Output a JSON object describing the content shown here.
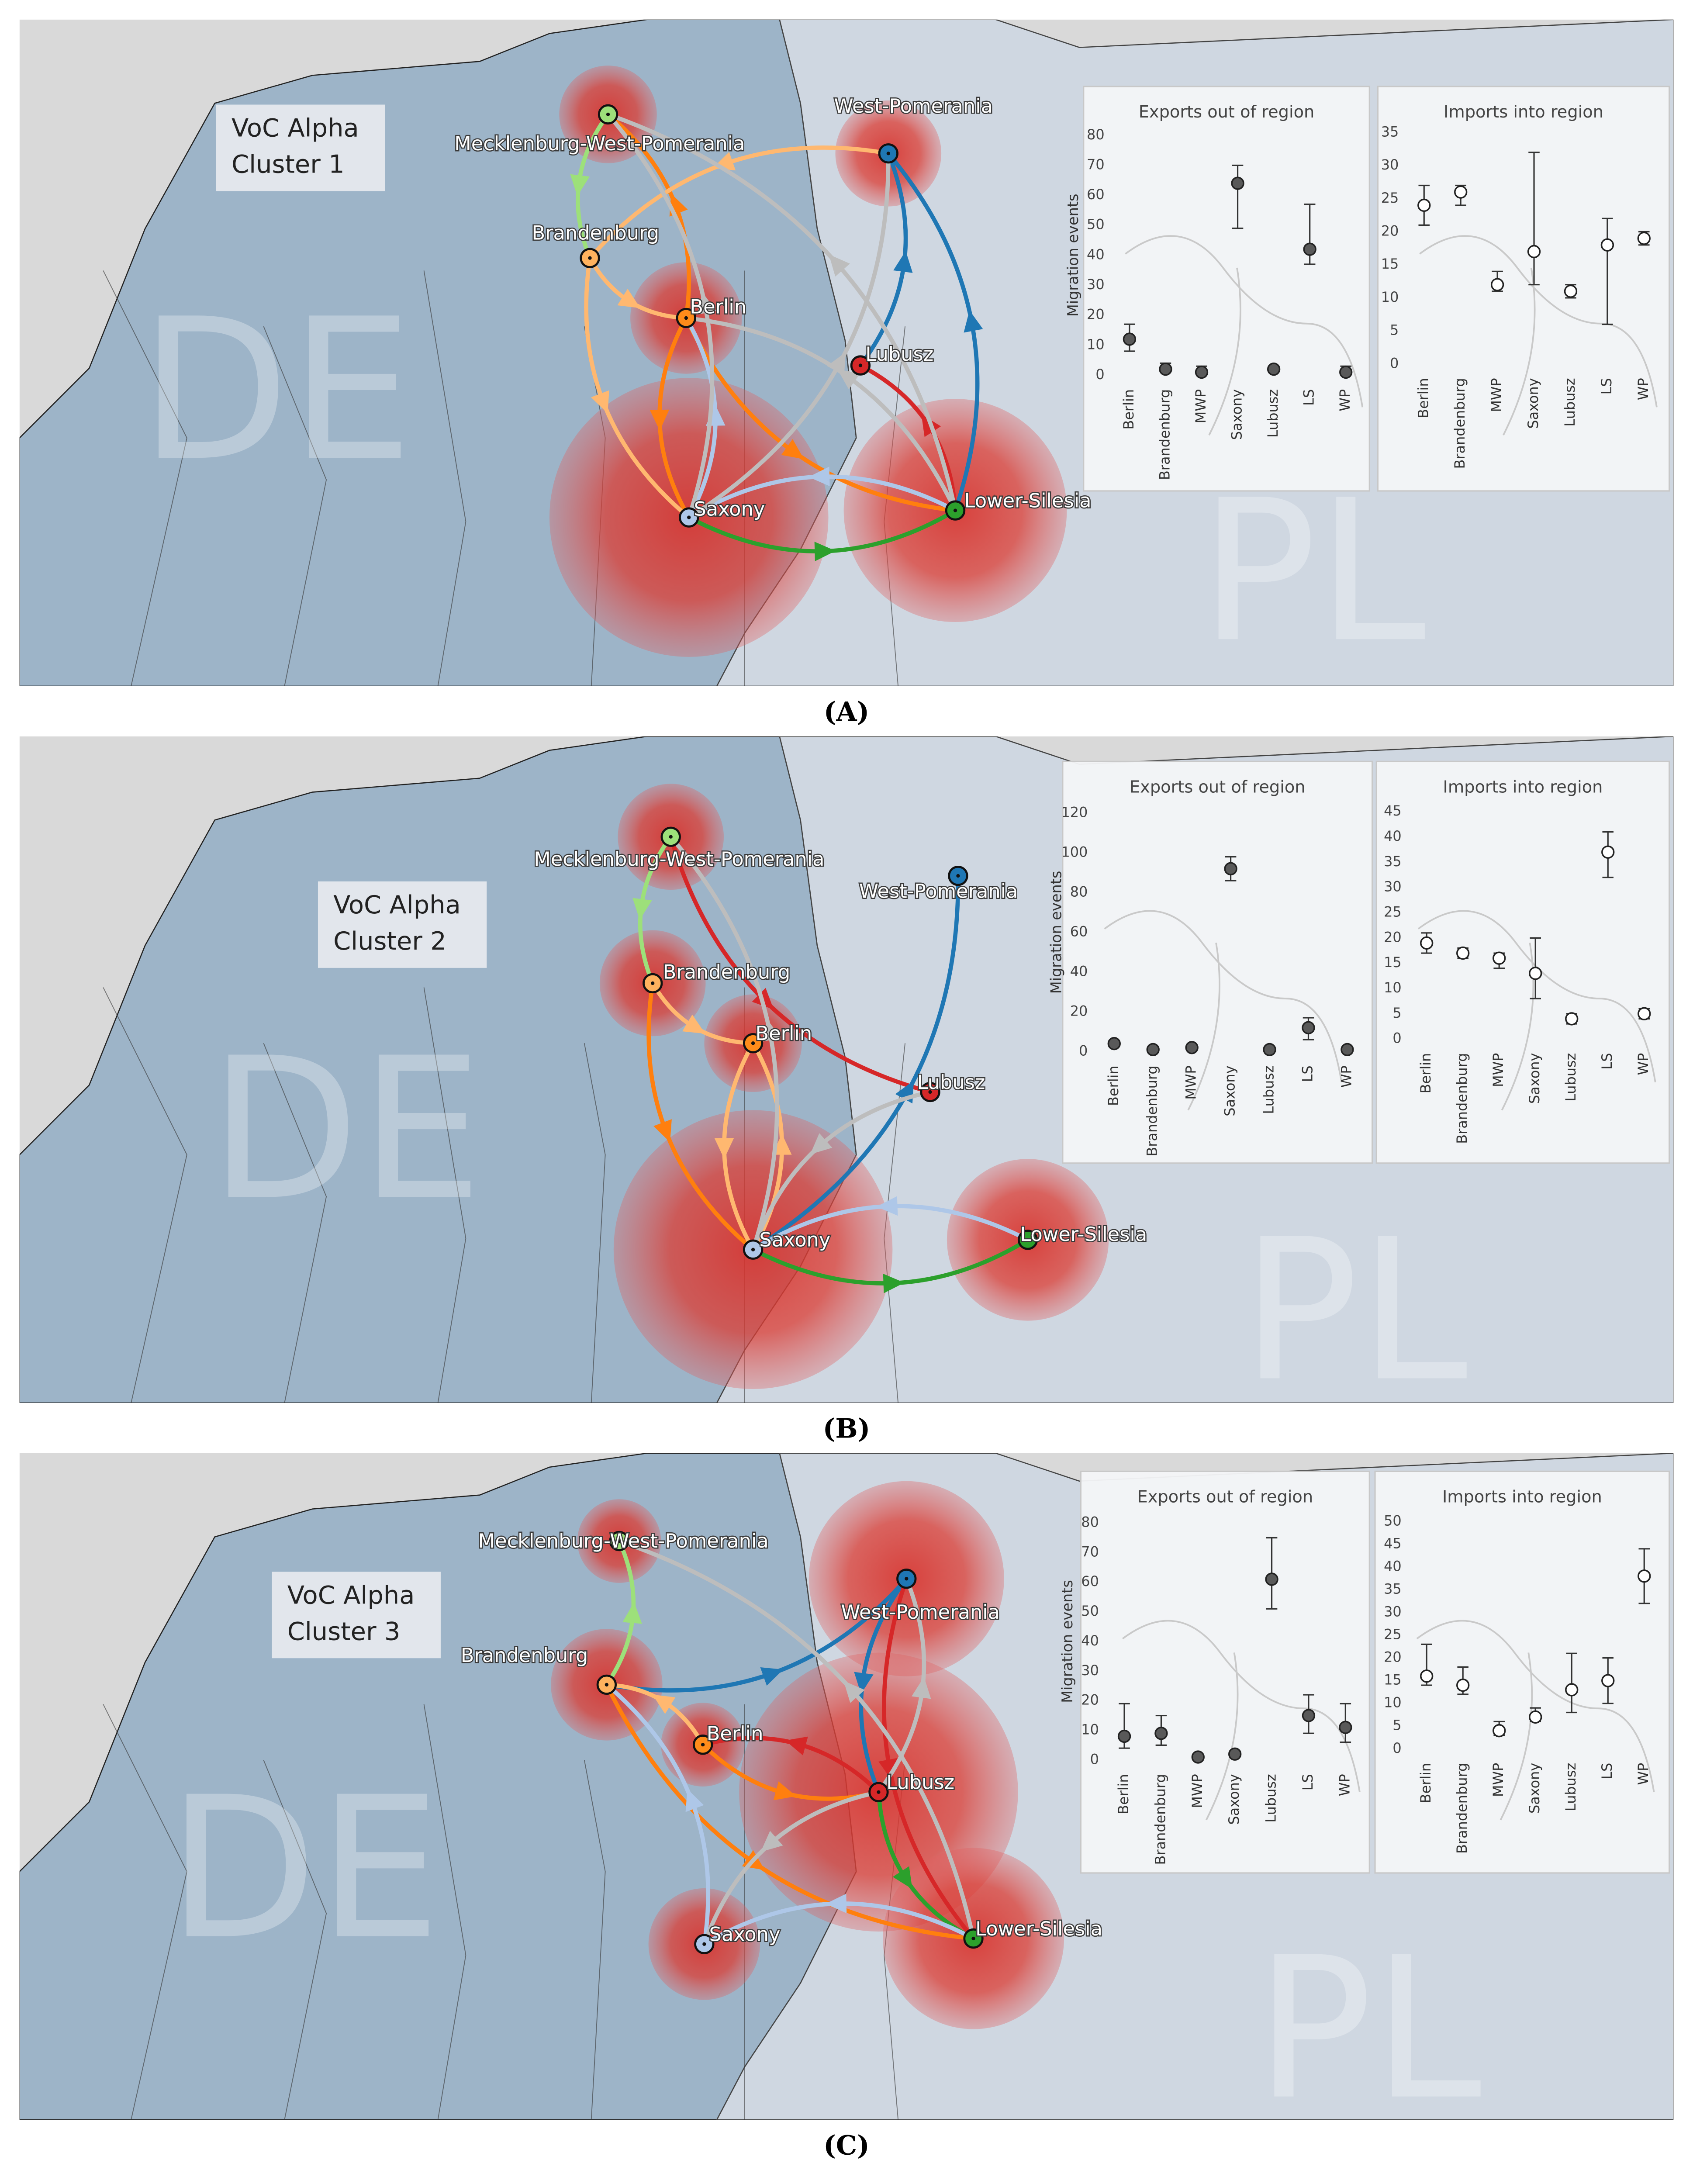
{
  "panels": [
    {
      "label": "(A)",
      "title_lines": [
        "VoC Alpha",
        "Cluster 1"
      ],
      "countries": [
        "DE",
        "PL"
      ],
      "regions": [
        "Mecklenburg-West-Pomerania",
        "West-Pomerania",
        "Brandenburg",
        "Berlin",
        "Lubusz",
        "Saxony",
        "Lower-Silesia"
      ]
    },
    {
      "label": "(B)",
      "title_lines": [
        "VoC Alpha",
        "Cluster 2"
      ],
      "countries": [
        "DE",
        "PL"
      ],
      "regions": [
        "Mecklenburg-West-Pomerania",
        "West-Pomerania",
        "Brandenburg",
        "Berlin",
        "Lubusz",
        "Saxony",
        "Lower-Silesia"
      ]
    },
    {
      "label": "(C)",
      "title_lines": [
        "VoC Alpha",
        "Cluster 3"
      ],
      "countries": [
        "DE",
        "PL"
      ],
      "regions": [
        "Mecklenburg-West-Pomerania",
        "West-Pomerania",
        "Brandenburg",
        "Berlin",
        "Lubusz",
        "Saxony",
        "Lower-Silesia"
      ]
    }
  ],
  "chart_data": [
    {
      "type": "errorbar",
      "title": "Exports out of region",
      "y_label": "Migration events",
      "categories": [
        "Berlin",
        "Brandenburg",
        "MWP",
        "Saxony",
        "Lubusz",
        "LS",
        "WP"
      ],
      "values": [
        12,
        2,
        1,
        64,
        2,
        42,
        1
      ],
      "lower": [
        8,
        1,
        0,
        49,
        1,
        37,
        0
      ],
      "upper": [
        17,
        4,
        3,
        70,
        3,
        57,
        3
      ],
      "ylim": [
        0,
        80
      ],
      "yticks": [
        0,
        10,
        20,
        30,
        40,
        50,
        60,
        70,
        80
      ],
      "marker_color": "#595959"
    },
    {
      "type": "errorbar",
      "title": "Imports into region",
      "categories": [
        "Berlin",
        "Brandenburg",
        "MWP",
        "Saxony",
        "Lubusz",
        "LS",
        "WP"
      ],
      "values": [
        24,
        26,
        12,
        17,
        11,
        18,
        19
      ],
      "lower": [
        21,
        24,
        11,
        12,
        10,
        6,
        18
      ],
      "upper": [
        27,
        27,
        14,
        32,
        12,
        22,
        20
      ],
      "ylim": [
        0,
        35
      ],
      "yticks": [
        0,
        5,
        10,
        15,
        20,
        25,
        30,
        35
      ],
      "marker_color": "#ffffff"
    },
    {
      "type": "errorbar",
      "title": "Exports out of region",
      "y_label": "Migration events",
      "categories": [
        "Berlin",
        "Brandenburg",
        "MWP",
        "Saxony",
        "Lubusz",
        "LS",
        "WP"
      ],
      "values": [
        4,
        1,
        2,
        92,
        1,
        12,
        1
      ],
      "lower": [
        3,
        0,
        1,
        86,
        0,
        6,
        0
      ],
      "upper": [
        5,
        2,
        3,
        98,
        2,
        17,
        2
      ],
      "ylim": [
        0,
        120
      ],
      "yticks": [
        0,
        20,
        40,
        60,
        80,
        100,
        120
      ],
      "marker_color": "#595959"
    },
    {
      "type": "errorbar",
      "title": "Imports into region",
      "categories": [
        "Berlin",
        "Brandenburg",
        "MWP",
        "Saxony",
        "Lubusz",
        "LS",
        "WP"
      ],
      "values": [
        19,
        17,
        16,
        13,
        4,
        37,
        5
      ],
      "lower": [
        17,
        16,
        14,
        8,
        3,
        32,
        4
      ],
      "upper": [
        21,
        18,
        17,
        20,
        5,
        41,
        6
      ],
      "ylim": [
        0,
        45
      ],
      "yticks": [
        0,
        5,
        10,
        15,
        20,
        25,
        30,
        35,
        40,
        45
      ],
      "marker_color": "#ffffff"
    },
    {
      "type": "errorbar",
      "title": "Exports out of region",
      "y_label": "Migration events",
      "categories": [
        "Berlin",
        "Brandenburg",
        "MWP",
        "Saxony",
        "Lubusz",
        "LS",
        "WP"
      ],
      "values": [
        8,
        9,
        1,
        2,
        61,
        15,
        11
      ],
      "lower": [
        4,
        5,
        0,
        1,
        51,
        9,
        6
      ],
      "upper": [
        19,
        15,
        2,
        3,
        75,
        22,
        19
      ],
      "ylim": [
        0,
        80
      ],
      "yticks": [
        0,
        10,
        20,
        30,
        40,
        50,
        60,
        70,
        80
      ],
      "marker_color": "#595959"
    },
    {
      "type": "errorbar",
      "title": "Imports into region",
      "categories": [
        "Berlin",
        "Brandenburg",
        "MWP",
        "Saxony",
        "Lubusz",
        "LS",
        "WP"
      ],
      "values": [
        16,
        14,
        4,
        7,
        13,
        15,
        38
      ],
      "lower": [
        14,
        12,
        3,
        6,
        8,
        10,
        32
      ],
      "upper": [
        23,
        18,
        6,
        9,
        21,
        20,
        44
      ],
      "ylim": [
        0,
        50
      ],
      "yticks": [
        0,
        5,
        10,
        15,
        20,
        25,
        30,
        35,
        40,
        45,
        50
      ],
      "marker_color": "#ffffff"
    }
  ]
}
